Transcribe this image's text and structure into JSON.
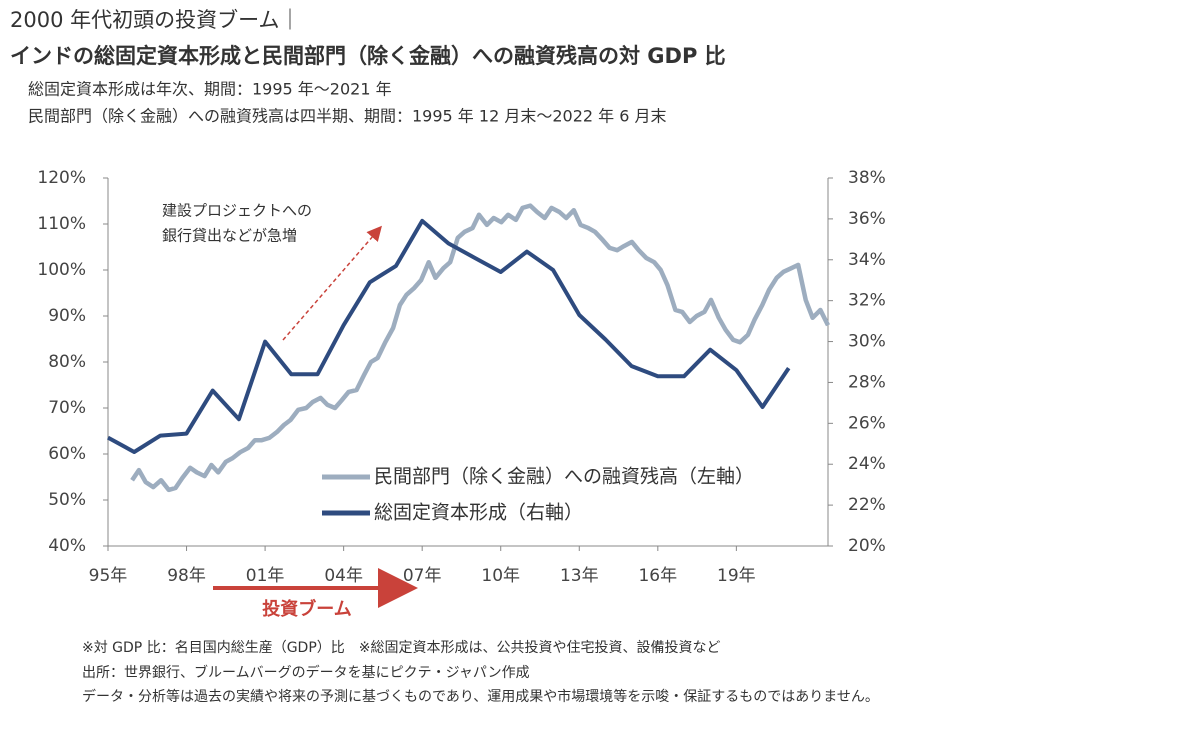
{
  "chart_data": {
    "type": "line",
    "title_lines": [
      "2000 年代初頭の投資ブーム｜",
      "インドの総固定資本形成と民間部門（除く金融）への融資残高の対 GDP 比"
    ],
    "subtitle_lines": [
      "総固定資本形成は年次、期間：1995 年～2021 年",
      "民間部門（除く金融）への融資残高は四半期、期間：1995 年 12 月末～2022 年 6 月末"
    ],
    "annotation_lines": [
      "建設プロジェクトへの",
      "銀行貸出などが急増"
    ],
    "boom_label": "投資ブーム",
    "notes": [
      "※対 GDP 比：名目国内総生産（GDP）比　※総固定資本形成は、公共投資や住宅投資、設備投資など",
      "出所：世界銀行、ブルームバーグのデータを基にピクテ・ジャパン作成",
      "データ・分析等は過去の実績や将来の予測に基づくものであり、運用成果や市場環境等を示唆・保証するものではありません。"
    ],
    "legend": "lower right",
    "xlim": [
      1995,
      2022.5
    ],
    "xticks": [
      {
        "value": 1995,
        "label": "95年"
      },
      {
        "value": 1998,
        "label": "98年"
      },
      {
        "value": 2001,
        "label": "01年"
      },
      {
        "value": 2004,
        "label": "04年"
      },
      {
        "value": 2007,
        "label": "07年"
      },
      {
        "value": 2010,
        "label": "10年"
      },
      {
        "value": 2013,
        "label": "13年"
      },
      {
        "value": 2016,
        "label": "16年"
      },
      {
        "value": 2019,
        "label": "19年"
      }
    ],
    "ylim": [
      40,
      120
    ],
    "yticks": [
      {
        "value": 40,
        "label": "40%"
      },
      {
        "value": 50,
        "label": "50%"
      },
      {
        "value": 60,
        "label": "60%"
      },
      {
        "value": 70,
        "label": "70%"
      },
      {
        "value": 80,
        "label": "80%"
      },
      {
        "value": 90,
        "label": "90%"
      },
      {
        "value": 100,
        "label": "100%"
      },
      {
        "value": 110,
        "label": "110%"
      },
      {
        "value": 120,
        "label": "120%"
      }
    ],
    "y2lim": [
      20,
      38
    ],
    "y2ticks": [
      {
        "value": 20,
        "label": "20%"
      },
      {
        "value": 22,
        "label": "22%"
      },
      {
        "value": 24,
        "label": "24%"
      },
      {
        "value": 26,
        "label": "26%"
      },
      {
        "value": 28,
        "label": "28%"
      },
      {
        "value": 30,
        "label": "30%"
      },
      {
        "value": 32,
        "label": "32%"
      },
      {
        "value": 34,
        "label": "34%"
      },
      {
        "value": 36,
        "label": "36%"
      },
      {
        "value": 38,
        "label": "38%"
      }
    ],
    "series": [
      {
        "name": "民間部門（除く金融）への融資残高（左軸）",
        "color": "#9dadbf",
        "axis": "y",
        "x": [
          1995.92,
          1996.18,
          1996.44,
          1996.73,
          1997.03,
          1997.32,
          1997.58,
          1997.84,
          1998.14,
          1998.39,
          1998.69,
          1998.95,
          1999.21,
          1999.5,
          1999.76,
          2000.05,
          2000.35,
          2000.61,
          2000.87,
          2001.16,
          2001.46,
          2001.72,
          2001.97,
          2002.27,
          2002.57,
          2002.82,
          2003.12,
          2003.38,
          2003.67,
          2003.93,
          2004.19,
          2004.49,
          2004.78,
          2005.04,
          2005.3,
          2005.59,
          2005.89,
          2006.15,
          2006.4,
          2006.7,
          2006.96,
          2007.25,
          2007.51,
          2007.81,
          2008.07,
          2008.36,
          2008.62,
          2008.92,
          2009.17,
          2009.47,
          2009.73,
          2010.02,
          2010.28,
          2010.58,
          2010.83,
          2011.13,
          2011.39,
          2011.68,
          2011.94,
          2012.24,
          2012.5,
          2012.79,
          2013.05,
          2013.35,
          2013.6,
          2013.9,
          2014.16,
          2014.45,
          2014.71,
          2015.01,
          2015.27,
          2015.56,
          2015.86,
          2016.11,
          2016.37,
          2016.67,
          2016.93,
          2017.22,
          2017.48,
          2017.78,
          2018.03,
          2018.33,
          2018.59,
          2018.88,
          2019.14,
          2019.44,
          2019.69,
          2019.99,
          2020.25,
          2020.54,
          2020.8,
          2021.1,
          2021.36,
          2021.65,
          2021.91,
          2022.21,
          2022.5
        ],
        "values": [
          54.3,
          56.5,
          53.9,
          52.8,
          54.3,
          52.2,
          52.6,
          54.8,
          57,
          56,
          55.2,
          57.6,
          56,
          58.3,
          59.1,
          60.4,
          61.3,
          63,
          63,
          63.5,
          64.8,
          66.3,
          67.4,
          69.6,
          70,
          71.3,
          72.2,
          70.7,
          70,
          71.7,
          73.5,
          73.9,
          77.2,
          80,
          80.9,
          84.3,
          87.4,
          92.4,
          94.6,
          96.1,
          97.8,
          101.7,
          98.3,
          100.4,
          101.7,
          107,
          108.3,
          109.1,
          112,
          109.8,
          111.3,
          110.4,
          112,
          110.9,
          113.5,
          114,
          112.6,
          111.3,
          113.5,
          112.6,
          111.3,
          113,
          109.8,
          109.1,
          108.3,
          106.5,
          104.8,
          104.3,
          105.2,
          106.1,
          104.3,
          102.6,
          101.7,
          100,
          96.7,
          91.3,
          90.9,
          88.7,
          90,
          90.9,
          93.5,
          89.6,
          87,
          84.8,
          84.3,
          85.9,
          89.1,
          92.4,
          95.7,
          98.3,
          99.6,
          100.4,
          101.1,
          93.5,
          89.6,
          91.3,
          88
        ]
      },
      {
        "name": "総固定資本形成（右軸）",
        "color": "#2e4b7f",
        "axis": "y2",
        "x": [
          1995,
          1996,
          1997,
          1998,
          1999,
          2000,
          2001,
          2002,
          2003,
          2004,
          2005,
          2006,
          2007,
          2008,
          2009,
          2010,
          2011,
          2012,
          2013,
          2014,
          2015,
          2016,
          2017,
          2018,
          2019,
          2020,
          2021
        ],
        "values": [
          25.3,
          24.6,
          25.4,
          25.5,
          27.6,
          26.2,
          30.0,
          28.4,
          28.4,
          30.8,
          32.9,
          33.7,
          35.9,
          34.8,
          34.1,
          33.4,
          34.4,
          33.5,
          31.3,
          30.1,
          28.8,
          28.3,
          28.3,
          29.6,
          28.6,
          26.8,
          28.7
        ]
      }
    ]
  }
}
